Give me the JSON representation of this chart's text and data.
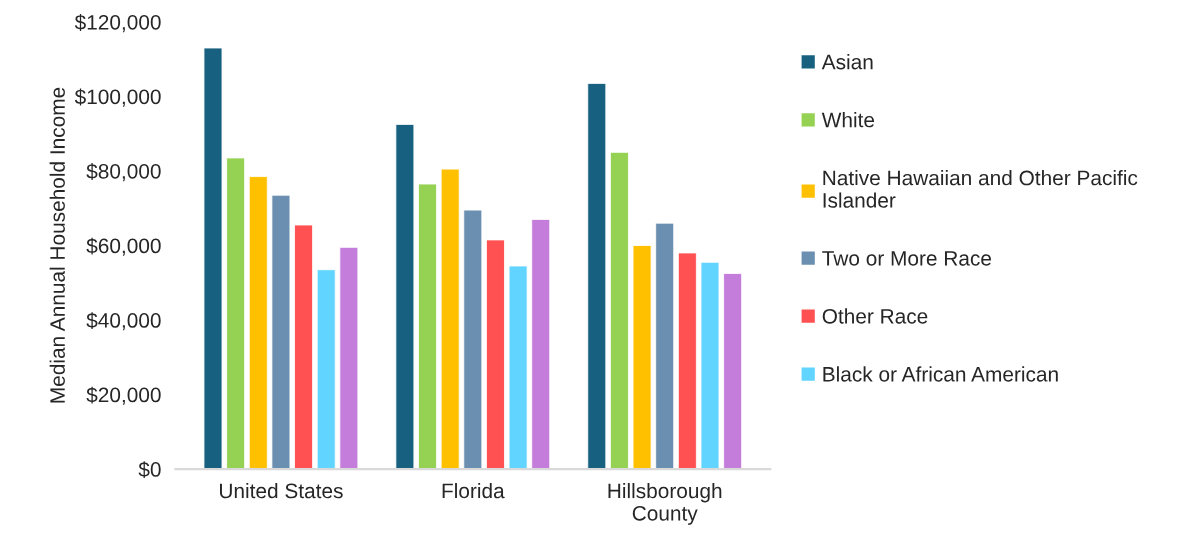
{
  "chart_data": {
    "type": "bar",
    "ylabel": "Median Annual Household Income",
    "categories": [
      "United States",
      "Florida",
      "Hillsborough\nCounty"
    ],
    "series": [
      {
        "name": "Asian",
        "color": "#17607f",
        "values": [
          113000,
          92500,
          103500
        ]
      },
      {
        "name": "White",
        "color": "#95d152",
        "values": [
          83500,
          76500,
          85000
        ]
      },
      {
        "name": "Native Hawaiian and Other Pacific\nIslander",
        "color": "#ffc000",
        "values": [
          78500,
          80500,
          60000
        ]
      },
      {
        "name": "Two or More Race",
        "color": "#6a8fb0",
        "values": [
          73500,
          69500,
          66000
        ]
      },
      {
        "name": "Other Race",
        "color": "#ff5052",
        "values": [
          65500,
          61500,
          58000
        ]
      },
      {
        "name": "Black or African American",
        "color": "#61d4ff",
        "values": [
          53500,
          54500,
          55500
        ]
      },
      {
        "color": "#c47ddb",
        "values": [
          59500,
          67000,
          52500
        ]
      }
    ],
    "ylim": [
      0,
      120000
    ],
    "yticks": [
      {
        "value": 0,
        "label": "$0"
      },
      {
        "value": 20000,
        "label": "$20,000"
      },
      {
        "value": 40000,
        "label": "$40,000"
      },
      {
        "value": 60000,
        "label": "$60,000"
      },
      {
        "value": 80000,
        "label": "$80,000"
      },
      {
        "value": 100000,
        "label": "$100,000"
      },
      {
        "value": 120000,
        "label": "$120,000"
      }
    ],
    "grid": false,
    "legend": "right"
  }
}
